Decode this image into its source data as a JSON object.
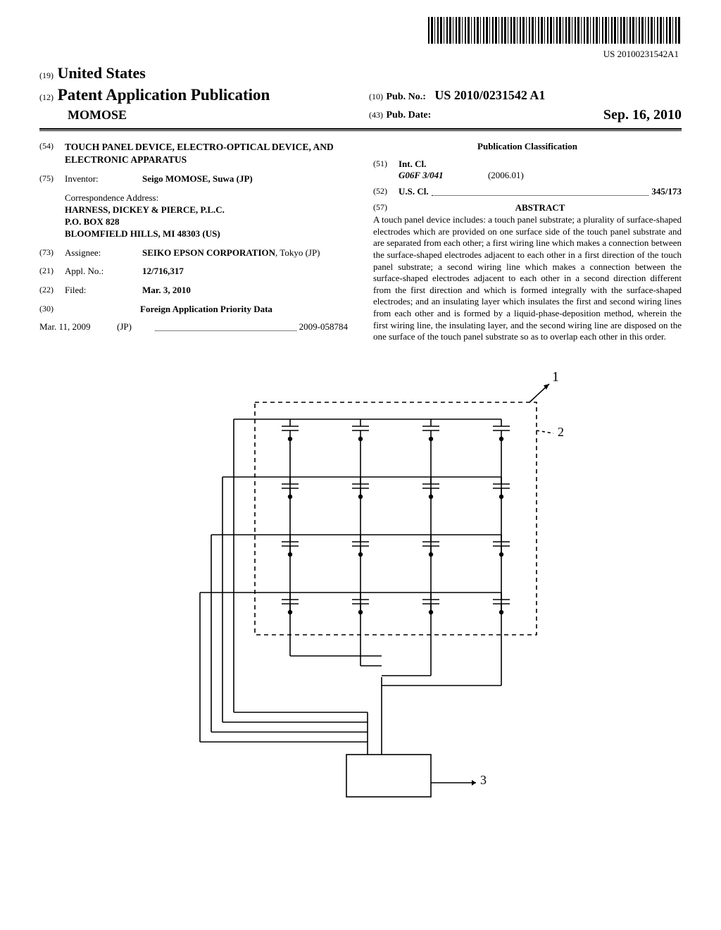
{
  "barcode_number_text": "US 20100231542A1",
  "header": {
    "code19": "(19)",
    "country": "United States",
    "code12": "(12)",
    "pub_type": "Patent Application Publication",
    "author": "MOMOSE",
    "code10": "(10)",
    "pubno_label": "Pub. No.:",
    "pubno": "US 2010/0231542 A1",
    "code43": "(43)",
    "pubdate_label": "Pub. Date:",
    "pubdate": "Sep. 16, 2010"
  },
  "left": {
    "code54": "(54)",
    "title": "TOUCH PANEL DEVICE, ELECTRO-OPTICAL DEVICE, AND ELECTRONIC APPARATUS",
    "code75": "(75)",
    "inventor_label": "Inventor:",
    "inventor": "Seigo MOMOSE, Suwa (JP)",
    "corr_label": "Correspondence Address:",
    "corr_name": "HARNESS, DICKEY & PIERCE, P.L.C.",
    "corr_line2": "P.O. BOX 828",
    "corr_line3": "BLOOMFIELD HILLS, MI 48303 (US)",
    "code73": "(73)",
    "assignee_label": "Assignee:",
    "assignee": "SEIKO EPSON CORPORATION",
    "assignee_loc": ", Tokyo (JP)",
    "code21": "(21)",
    "applno_label": "Appl. No.:",
    "applno": "12/716,317",
    "code22": "(22)",
    "filed_label": "Filed:",
    "filed": "Mar. 3, 2010",
    "code30": "(30)",
    "priority_h": "Foreign Application Priority Data",
    "priority_date": "Mar. 11, 2009",
    "priority_cc": "(JP)",
    "priority_num": "2009-058784"
  },
  "right": {
    "pubclass_h": "Publication Classification",
    "code51": "(51)",
    "intcl_label": "Int. Cl.",
    "intcl_val": "G06F 3/041",
    "intcl_year": "(2006.01)",
    "code52": "(52)",
    "uscl_label": "U.S. Cl.",
    "uscl_val": "345/173",
    "code57": "(57)",
    "abstract_h": "ABSTRACT",
    "abstract": "A touch panel device includes: a touch panel substrate; a plurality of surface-shaped electrodes which are provided on one surface side of the touch panel substrate and are separated from each other; a first wiring line which makes a connection between the surface-shaped electrodes adjacent to each other in a first direction of the touch panel substrate; a second wiring line which makes a connection between the surface-shaped electrodes adjacent to each other in a second direction different from the first direction and which is formed integrally with the surface-shaped electrodes; and an insulating layer which insulates the first and second wiring lines from each other and is formed by a liquid-phase-deposition method, wherein the first wiring line, the insulating layer, and the second wiring line are disposed on the one surface of the touch panel substrate so as to overlap each other in this order."
  },
  "figure": {
    "callouts": {
      "one": "1",
      "two": "2",
      "three": "3"
    },
    "grid": {
      "rows": 4,
      "cols": 4
    },
    "colors": {
      "stroke": "#000000",
      "dash": "#000000",
      "background": "#ffffff"
    },
    "line_width": 1.6,
    "dash_pattern": "6,5"
  }
}
